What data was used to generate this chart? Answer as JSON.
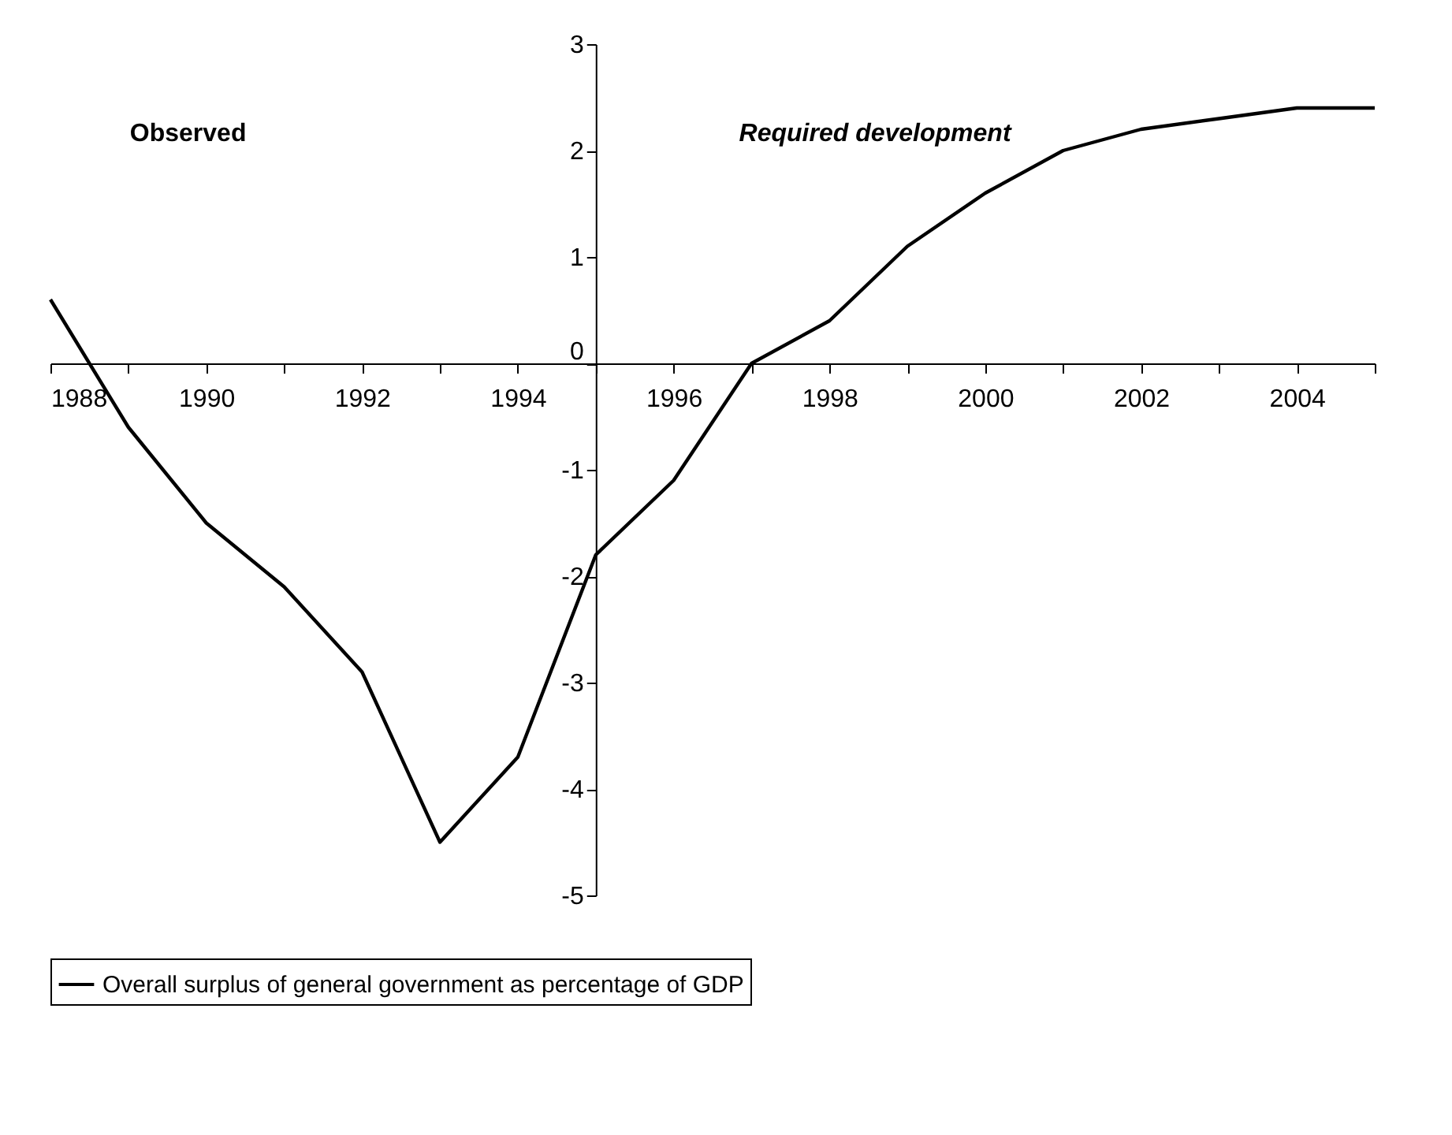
{
  "chart_data": {
    "type": "line",
    "x": [
      1988,
      1989,
      1990,
      1991,
      1992,
      1993,
      1994,
      1995,
      1996,
      1997,
      1998,
      1999,
      2000,
      2001,
      2002,
      2003,
      2004,
      2005
    ],
    "series": [
      {
        "name": "Overall surplus of general government as percentage of GDP",
        "color": "#000000",
        "values": [
          0.6,
          -0.6,
          -1.5,
          -2.1,
          -2.9,
          -4.5,
          -3.7,
          -1.8,
          -1.1,
          0,
          0.4,
          1.1,
          1.6,
          2.0,
          2.2,
          2.3,
          2.4,
          2.4
        ]
      }
    ],
    "xlim": [
      1988,
      2005
    ],
    "xticks": [
      1988,
      {
        "value": 1989,
        "label": null
      },
      1990,
      {
        "value": 1991,
        "label": null
      },
      1992,
      {
        "value": 1993,
        "label": null
      },
      1994,
      {
        "value": 1995,
        "label": null
      },
      1996,
      {
        "value": 1997,
        "label": null
      },
      1998,
      {
        "value": 1999,
        "label": null
      },
      2000,
      {
        "value": 2001,
        "label": null
      },
      2002,
      {
        "value": 2003,
        "label": null
      },
      2004,
      {
        "value": 2005,
        "label": null
      }
    ],
    "ylim": [
      -5,
      3
    ],
    "yticks": [
      -5,
      -4,
      -3,
      -2,
      -1,
      0,
      1,
      2,
      3
    ],
    "annotations": [
      "Observed",
      "Required development"
    ],
    "grid": false,
    "legend": "bottom",
    "marker": "none",
    "line_style": "solid"
  }
}
